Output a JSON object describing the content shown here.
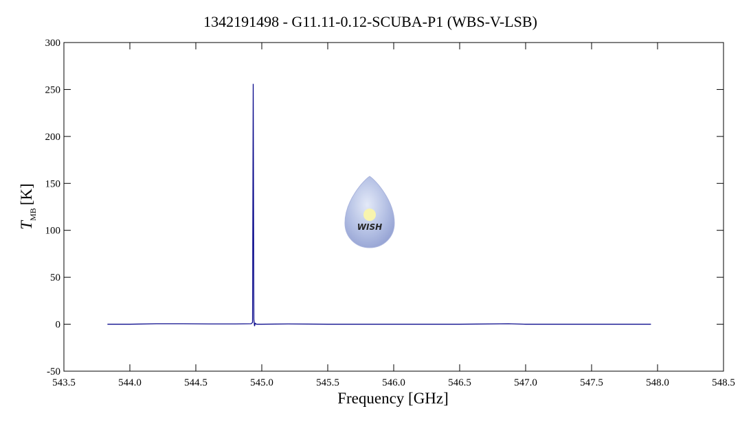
{
  "chart_data": {
    "type": "line",
    "title": "1342191498 - G11.11-0.12-SCUBA-P1 (WBS-V-LSB)",
    "xlabel": "Frequency [GHz]",
    "ylabel": {
      "symbol": "T",
      "subscript": "MB",
      "unit": "[K]"
    },
    "watermark_text": "WISH",
    "x": [
      543.83,
      544.0,
      544.2,
      544.4,
      544.6,
      544.8,
      544.92,
      544.93,
      544.935,
      544.94,
      544.945,
      544.95,
      544.96,
      545.0,
      545.2,
      545.5,
      546.0,
      546.5,
      546.87,
      547.0,
      547.5,
      547.95
    ],
    "values": [
      0,
      0,
      0.5,
      0.5,
      0.3,
      0.3,
      0.5,
      2,
      256,
      5,
      -2,
      1,
      0,
      0,
      0.3,
      0,
      0,
      0,
      0.5,
      0,
      0,
      0
    ],
    "color": "#0a0a8c",
    "xlim": [
      543.5,
      548.5
    ],
    "xticks": [
      543.5,
      {
        "value": 544,
        "label": "544.0"
      },
      544.5,
      {
        "value": 545,
        "label": "545.0"
      },
      545.5,
      {
        "value": 546,
        "label": "546.0"
      },
      546.5,
      {
        "value": 547,
        "label": "547.0"
      },
      547.5,
      {
        "value": 548,
        "label": "548.0"
      },
      548.5
    ],
    "ylim": [
      -50,
      300
    ],
    "yticks": [
      -50,
      0,
      50,
      100,
      150,
      200,
      250,
      300
    ],
    "grid": false
  }
}
